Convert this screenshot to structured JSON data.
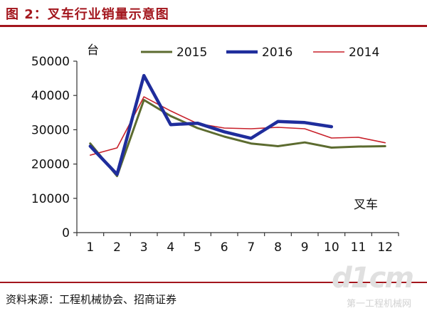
{
  "header": {
    "title": "图 2：叉车行业销量示意图"
  },
  "footer": {
    "source": "资料来源：工程机械协会、招商证券"
  },
  "watermark": {
    "logo": "d1cm",
    "text": "第一工程机械网"
  },
  "colors": {
    "brand": "#a3161d",
    "series_2015": "#5c6b2f",
    "series_2016": "#1f2d9c",
    "series_2014": "#c8202a"
  },
  "chart_data": {
    "type": "line",
    "title": "",
    "ylabel": "台",
    "xlabel": "叉车",
    "x": [
      1,
      2,
      3,
      4,
      5,
      6,
      7,
      8,
      9,
      10,
      11,
      12
    ],
    "ylim": [
      0,
      50000
    ],
    "yticks": [
      0,
      10000,
      20000,
      30000,
      40000,
      50000
    ],
    "grid": false,
    "legend_position": "top",
    "series": [
      {
        "name": "2015",
        "color": "#5c6b2f",
        "width": 3,
        "values": [
          26000,
          16500,
          38700,
          34000,
          30500,
          28000,
          26000,
          25200,
          26300,
          24800,
          25100,
          25200
        ]
      },
      {
        "name": "2016",
        "color": "#1f2d9c",
        "width": 4.5,
        "values": [
          25200,
          17000,
          45800,
          31500,
          31900,
          29400,
          27500,
          32400,
          32100,
          30900,
          null,
          null
        ]
      },
      {
        "name": "2014",
        "color": "#c8202a",
        "width": 1.6,
        "values": [
          22600,
          24700,
          39600,
          35500,
          31800,
          30500,
          30300,
          30700,
          30300,
          27600,
          27800,
          26200
        ]
      }
    ]
  }
}
